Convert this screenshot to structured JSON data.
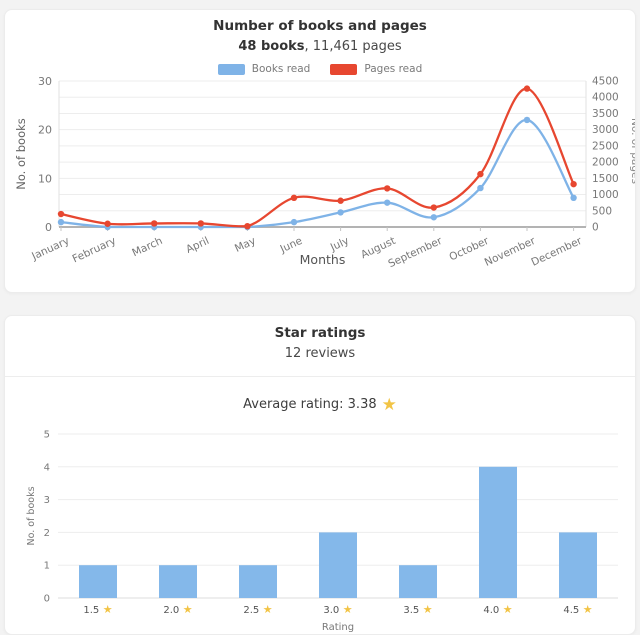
{
  "colors": {
    "books_blue": "#7FB3E7",
    "pages_red": "#E74730",
    "bar_blue": "#84B8EA",
    "star_yellow": "#F2C445",
    "page_background": "#F3F3F3",
    "card_background": "#FFFFFF"
  },
  "books_pages_card": {
    "title": "Number of books and pages",
    "subtitle_bold": "48 books",
    "subtitle_rest": ", 11,461 pages"
  },
  "ratings_card": {
    "title": "Star ratings",
    "subtitle": "12 reviews",
    "average_label": "Average rating: 3.38",
    "star_icon": "★"
  },
  "chart_data": [
    {
      "type": "line",
      "title": "Number of books and pages",
      "x": [
        "January",
        "February",
        "March",
        "April",
        "May",
        "June",
        "July",
        "August",
        "September",
        "October",
        "November",
        "December"
      ],
      "xlabel": "Months",
      "ylabel_left": "No. of books",
      "ylabel_right": "No. of pages",
      "ylim_left": [
        0,
        30
      ],
      "ylim_right": [
        0,
        4500
      ],
      "yticks_left": [
        0,
        10,
        20,
        30
      ],
      "yticks_right": [
        0,
        500,
        1000,
        1500,
        2000,
        2500,
        3000,
        3500,
        4000,
        4500
      ],
      "grid": true,
      "legend_position": "top",
      "series": [
        {
          "name": "Books read",
          "axis": "left",
          "color": "#7FB3E7",
          "values": [
            1,
            0,
            0,
            0,
            0,
            1,
            3,
            5,
            2,
            8,
            22,
            6
          ]
        },
        {
          "name": "Pages read",
          "axis": "right",
          "color": "#E74730",
          "values": [
            400,
            100,
            110,
            110,
            25,
            900,
            810,
            1190,
            600,
            1630,
            4266,
            1320
          ]
        }
      ]
    },
    {
      "type": "bar",
      "title": "Star ratings",
      "categories": [
        "1.5",
        "2.0",
        "2.5",
        "3.0",
        "3.5",
        "4.0",
        "4.5"
      ],
      "values": [
        1,
        1,
        1,
        2,
        1,
        4,
        2
      ],
      "xlabel": "Rating",
      "ylabel": "No. of books",
      "ylim": [
        0,
        5
      ],
      "yticks": [
        0,
        1,
        2,
        3,
        4,
        5
      ],
      "bar_color": "#84B8EA",
      "category_star_icon": "★",
      "grid": true
    }
  ]
}
